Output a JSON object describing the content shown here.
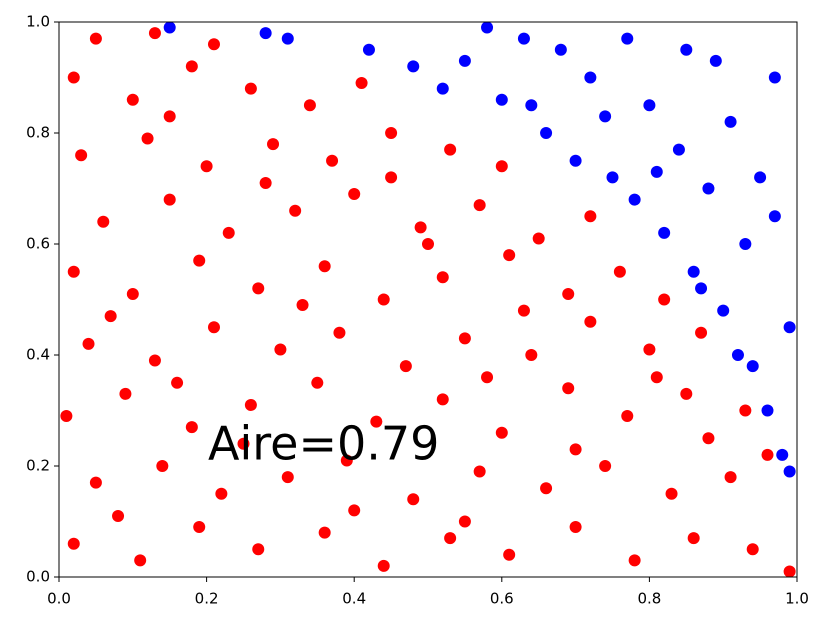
{
  "chart_data": {
    "type": "scatter",
    "annotation": "Aire=0.79",
    "xlim": [
      0,
      1
    ],
    "ylim": [
      0,
      1
    ],
    "xticks": [
      {
        "value": 0,
        "label": "0.0"
      },
      0.2,
      0.4,
      0.6,
      0.8,
      {
        "value": 1,
        "label": "1.0"
      }
    ],
    "yticks": [
      {
        "value": 0,
        "label": "0.0"
      },
      0.2,
      0.4,
      0.6,
      0.8,
      {
        "value": 1,
        "label": "1.0"
      }
    ],
    "grid": false,
    "series": [
      {
        "color": "#ff0000",
        "x": [
          0.02,
          0.11,
          0.19,
          0.27,
          0.36,
          0.44,
          0.53,
          0.61,
          0.7,
          0.78,
          0.86,
          0.94,
          0.99,
          0.05,
          0.14,
          0.22,
          0.31,
          0.39,
          0.48,
          0.57,
          0.66,
          0.74,
          0.83,
          0.91,
          0.96,
          0.01,
          0.09,
          0.18,
          0.26,
          0.35,
          0.43,
          0.52,
          0.6,
          0.69,
          0.77,
          0.85,
          0.93,
          0.04,
          0.13,
          0.21,
          0.3,
          0.38,
          0.47,
          0.55,
          0.64,
          0.72,
          0.8,
          0.87,
          0.02,
          0.1,
          0.19,
          0.27,
          0.36,
          0.44,
          0.52,
          0.61,
          0.69,
          0.76,
          0.82,
          0.06,
          0.15,
          0.23,
          0.32,
          0.4,
          0.49,
          0.57,
          0.65,
          0.72,
          0.03,
          0.12,
          0.2,
          0.29,
          0.37,
          0.45,
          0.53,
          0.6,
          0.02,
          0.1,
          0.18,
          0.26,
          0.34,
          0.41,
          0.05,
          0.13,
          0.21,
          0.08,
          0.25,
          0.4,
          0.58,
          0.33,
          0.16,
          0.7,
          0.88,
          0.5,
          0.28,
          0.45,
          0.15,
          0.63,
          0.81,
          0.07,
          0.55
        ],
        "values": [
          0.06,
          0.03,
          0.09,
          0.05,
          0.08,
          0.02,
          0.07,
          0.04,
          0.09,
          0.03,
          0.07,
          0.05,
          0.01,
          0.17,
          0.2,
          0.15,
          0.18,
          0.21,
          0.14,
          0.19,
          0.16,
          0.2,
          0.15,
          0.18,
          0.22,
          0.29,
          0.33,
          0.27,
          0.31,
          0.35,
          0.28,
          0.32,
          0.26,
          0.34,
          0.29,
          0.33,
          0.3,
          0.42,
          0.39,
          0.45,
          0.41,
          0.44,
          0.38,
          0.43,
          0.4,
          0.46,
          0.41,
          0.44,
          0.55,
          0.51,
          0.57,
          0.52,
          0.56,
          0.5,
          0.54,
          0.58,
          0.51,
          0.55,
          0.5,
          0.64,
          0.68,
          0.62,
          0.66,
          0.69,
          0.63,
          0.67,
          0.61,
          0.65,
          0.76,
          0.79,
          0.74,
          0.78,
          0.75,
          0.8,
          0.77,
          0.74,
          0.9,
          0.86,
          0.92,
          0.88,
          0.85,
          0.89,
          0.97,
          0.98,
          0.96,
          0.11,
          0.24,
          0.12,
          0.36,
          0.49,
          0.35,
          0.23,
          0.25,
          0.6,
          0.71,
          0.72,
          0.83,
          0.48,
          0.36,
          0.47,
          0.1
        ]
      },
      {
        "color": "#0000ff",
        "x": [
          0.15,
          0.28,
          0.31,
          0.42,
          0.48,
          0.52,
          0.55,
          0.6,
          0.63,
          0.66,
          0.7,
          0.72,
          0.75,
          0.78,
          0.8,
          0.82,
          0.84,
          0.86,
          0.88,
          0.9,
          0.91,
          0.93,
          0.94,
          0.95,
          0.96,
          0.97,
          0.98,
          0.99,
          0.99,
          0.97,
          0.89,
          0.85,
          0.77,
          0.68,
          0.58,
          0.92,
          0.87,
          0.74,
          0.64,
          0.81
        ],
        "values": [
          0.99,
          0.98,
          0.97,
          0.95,
          0.92,
          0.88,
          0.93,
          0.86,
          0.97,
          0.8,
          0.75,
          0.9,
          0.72,
          0.68,
          0.85,
          0.62,
          0.77,
          0.55,
          0.7,
          0.48,
          0.82,
          0.6,
          0.38,
          0.72,
          0.3,
          0.9,
          0.22,
          0.45,
          0.19,
          0.65,
          0.93,
          0.95,
          0.97,
          0.95,
          0.99,
          0.4,
          0.52,
          0.83,
          0.85,
          0.73
        ]
      }
    ]
  }
}
